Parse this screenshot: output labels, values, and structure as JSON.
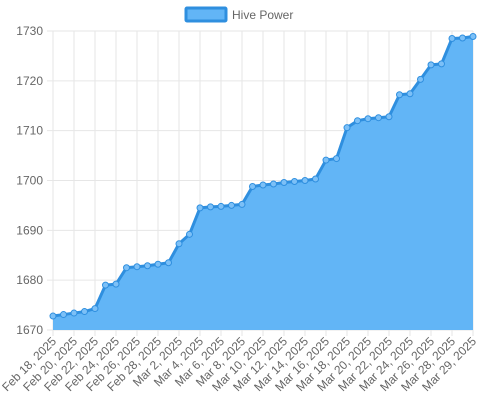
{
  "chart_data": {
    "type": "area",
    "legend": {
      "position": "top",
      "entries": [
        {
          "label": "Hive Power"
        }
      ]
    },
    "ylim": [
      1670,
      1730
    ],
    "yticks": [
      1670,
      1680,
      1690,
      1700,
      1710,
      1720,
      1730
    ],
    "x_tick_labels": [
      "Feb 18, 2025",
      "Feb 20, 2025",
      "Feb 22, 2025",
      "Feb 24, 2025",
      "Feb 26, 2025",
      "Feb 28, 2025",
      "Mar 2, 2025",
      "Mar 4, 2025",
      "Mar 6, 2025",
      "Mar 8, 2025",
      "Mar 10, 2025",
      "Mar 12, 2025",
      "Mar 14, 2025",
      "Mar 16, 2025",
      "Mar 18, 2025",
      "Mar 20, 2025",
      "Mar 22, 2025",
      "Mar 24, 2025",
      "Mar 26, 2025",
      "Mar 28, 2025",
      "Mar 29, 2025"
    ],
    "grid": true,
    "colors": {
      "fill": "#62b5f6",
      "line": "#2f8fdf",
      "point": "#7cc0f7",
      "grid": "#e6e6e6",
      "axis_text": "#666666"
    },
    "series": [
      {
        "name": "Hive Power",
        "x": [
          "Feb 18, 2025",
          "Feb 19, 2025",
          "Feb 20, 2025",
          "Feb 21, 2025",
          "Feb 22, 2025",
          "Feb 23, 2025",
          "Feb 24, 2025",
          "Feb 25, 2025",
          "Feb 26, 2025",
          "Feb 27, 2025",
          "Feb 28, 2025",
          "Mar 1, 2025",
          "Mar 2, 2025",
          "Mar 3, 2025",
          "Mar 4, 2025",
          "Mar 5, 2025",
          "Mar 6, 2025",
          "Mar 7, 2025",
          "Mar 8, 2025",
          "Mar 9, 2025",
          "Mar 10, 2025",
          "Mar 11, 2025",
          "Mar 12, 2025",
          "Mar 13, 2025",
          "Mar 14, 2025",
          "Mar 15, 2025",
          "Mar 16, 2025",
          "Mar 17, 2025",
          "Mar 18, 2025",
          "Mar 19, 2025",
          "Mar 20, 2025",
          "Mar 21, 2025",
          "Mar 22, 2025",
          "Mar 23, 2025",
          "Mar 24, 2025",
          "Mar 25, 2025",
          "Mar 26, 2025",
          "Mar 27, 2025",
          "Mar 28, 2025",
          "Mar 28, 2025",
          "Mar 29, 2025"
        ],
        "values": [
          1672.8,
          1673.1,
          1673.4,
          1673.7,
          1674.3,
          1679.0,
          1679.2,
          1682.5,
          1682.7,
          1682.9,
          1683.2,
          1683.5,
          1687.3,
          1689.2,
          1694.5,
          1694.7,
          1694.8,
          1695.0,
          1695.2,
          1698.8,
          1699.1,
          1699.3,
          1699.6,
          1699.8,
          1700.0,
          1700.3,
          1704.1,
          1704.4,
          1710.6,
          1712.0,
          1712.4,
          1712.6,
          1712.8,
          1717.2,
          1717.4,
          1720.3,
          1723.2,
          1723.4,
          1728.5,
          1728.6,
          1728.9
        ]
      }
    ]
  }
}
